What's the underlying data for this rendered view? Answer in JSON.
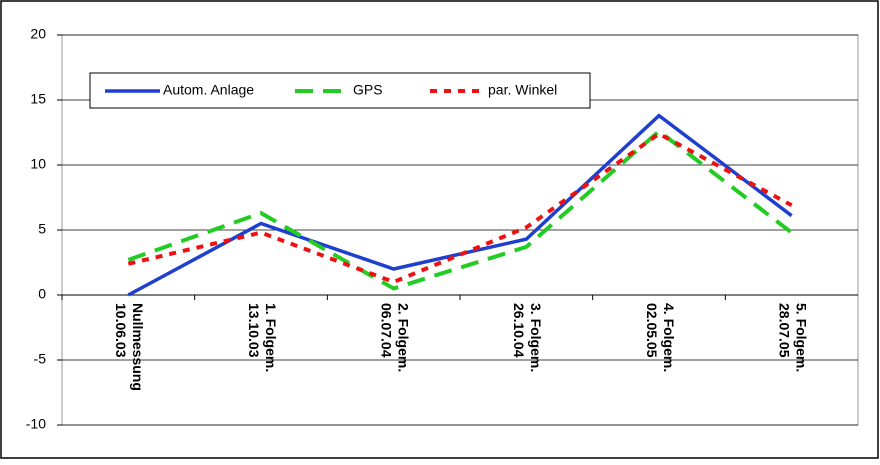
{
  "chart_data": {
    "type": "line",
    "categories": [
      [
        "Nullmessung",
        "10.06.03"
      ],
      [
        "1. Folgem.",
        "13.10.03"
      ],
      [
        "2. Folgem.",
        "06.07.04"
      ],
      [
        "3. Folgem.",
        "26.10.04"
      ],
      [
        "4. Folgem.",
        "02.05.05"
      ],
      [
        "5. Folgem.",
        "28.07.05"
      ]
    ],
    "series": [
      {
        "name": "Autom. Anlage",
        "color": "#1f3fcf",
        "dash": "solid",
        "values": [
          0,
          5.5,
          2,
          4.3,
          13.8,
          6.1
        ]
      },
      {
        "name": "GPS",
        "color": "#22cc22",
        "dash": "long",
        "values": [
          2.7,
          6.3,
          0.5,
          3.7,
          12.6,
          4.8
        ]
      },
      {
        "name": "par. Winkel",
        "color": "#ee1111",
        "dash": "short",
        "values": [
          2.4,
          4.8,
          1,
          5.2,
          12.4,
          6.9
        ]
      }
    ],
    "ylim": [
      -10,
      20
    ],
    "yticks": [
      -10,
      -5,
      0,
      5,
      10,
      15,
      20
    ],
    "grid": true
  }
}
